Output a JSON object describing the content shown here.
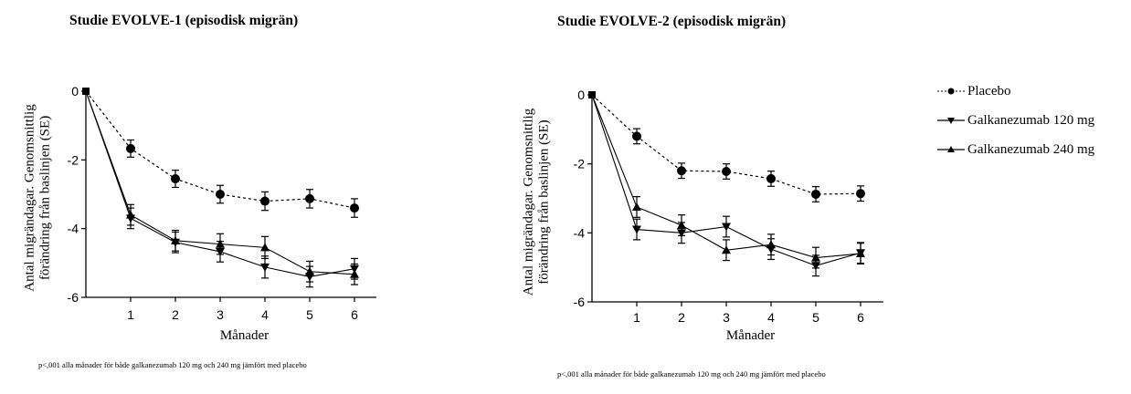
{
  "chart_data": [
    {
      "type": "line",
      "title": "Studie EVOLVE-1 (episodisk migrän)",
      "xlabel": "Månader",
      "ylabel": [
        "Antal migrändagar. Genomsnittlig",
        "förändring från baslinjen (SE)"
      ],
      "x": [
        0,
        1,
        2,
        3,
        4,
        5,
        6
      ],
      "xticks": [
        "1",
        "2",
        "3",
        "4",
        "5",
        "6"
      ],
      "yticks": [
        "0",
        "-2",
        "-4",
        "-6"
      ],
      "ytick_values": [
        0,
        -2,
        -4,
        -6
      ],
      "ylim": [
        -6,
        0
      ],
      "xlim": [
        0,
        6.5
      ],
      "grid": false,
      "series": [
        {
          "name": "Placebo",
          "marker": "circle",
          "line": "dashed",
          "values": [
            0,
            -1.67,
            -2.55,
            -3.0,
            -3.2,
            -3.13,
            -3.4
          ],
          "se": [
            0,
            0.25,
            0.25,
            0.26,
            0.27,
            0.27,
            0.27
          ]
        },
        {
          "name": "Galkanezumab 120 mg",
          "marker": "triangle-down",
          "line": "solid",
          "values": [
            0,
            -3.7,
            -4.4,
            -4.67,
            -5.12,
            -5.4,
            -5.17
          ],
          "se": [
            0,
            0.3,
            0.3,
            0.3,
            0.32,
            0.3,
            0.3
          ]
        },
        {
          "name": "Galkanezumab 240 mg",
          "marker": "triangle-up",
          "line": "solid",
          "values": [
            0,
            -3.6,
            -4.35,
            -4.45,
            -4.55,
            -5.25,
            -5.33
          ],
          "se": [
            0,
            0.3,
            0.3,
            0.3,
            0.32,
            0.3,
            0.3
          ]
        }
      ],
      "footnote": "p<,001 alla månader för både galkanezumab 120 mg och 240 mg jämfört med placebo"
    },
    {
      "type": "line",
      "title": "Studie EVOLVE-2 (episodisk migrän)",
      "xlabel": "Månader",
      "ylabel": [
        "Antal migrändagar. Genomsnittlig",
        "förändring från baslinjen (SE)"
      ],
      "x": [
        0,
        1,
        2,
        3,
        4,
        5,
        6
      ],
      "xticks": [
        "1",
        "2",
        "3",
        "4",
        "5",
        "6"
      ],
      "yticks": [
        "0",
        "-2",
        "-4",
        "-6"
      ],
      "ytick_values": [
        0,
        -2,
        -4,
        -6
      ],
      "ylim": [
        -6,
        0
      ],
      "xlim": [
        0,
        6.5
      ],
      "grid": false,
      "series": [
        {
          "name": "Placebo",
          "marker": "circle",
          "line": "dashed",
          "values": [
            0,
            -1.2,
            -2.2,
            -2.22,
            -2.43,
            -2.88,
            -2.86
          ],
          "se": [
            0,
            0.22,
            0.22,
            0.22,
            0.22,
            0.22,
            0.22
          ]
        },
        {
          "name": "Galkanezumab 120 mg",
          "marker": "triangle-down",
          "line": "solid",
          "values": [
            0,
            -3.9,
            -4.0,
            -3.82,
            -4.47,
            -4.95,
            -4.58
          ],
          "se": [
            0,
            0.3,
            0.3,
            0.3,
            0.3,
            0.3,
            0.3
          ]
        },
        {
          "name": "Galkanezumab 240 mg",
          "marker": "triangle-up",
          "line": "solid",
          "values": [
            0,
            -3.25,
            -3.78,
            -4.5,
            -4.34,
            -4.72,
            -4.6
          ],
          "se": [
            0,
            0.3,
            0.3,
            0.3,
            0.3,
            0.3,
            0.3
          ]
        }
      ],
      "footnote": "p<,001 alla månader för både galkanezumab 120 mg och 240 mg jämfört med placebo"
    }
  ],
  "legend": {
    "position": "right",
    "items": [
      {
        "label": "Placebo",
        "marker": "circle",
        "line": "dashed"
      },
      {
        "label": "Galkanezumab 120 mg",
        "marker": "triangle-down",
        "line": "solid"
      },
      {
        "label": "Galkanezumab 240 mg",
        "marker": "triangle-up",
        "line": "solid"
      }
    ]
  }
}
